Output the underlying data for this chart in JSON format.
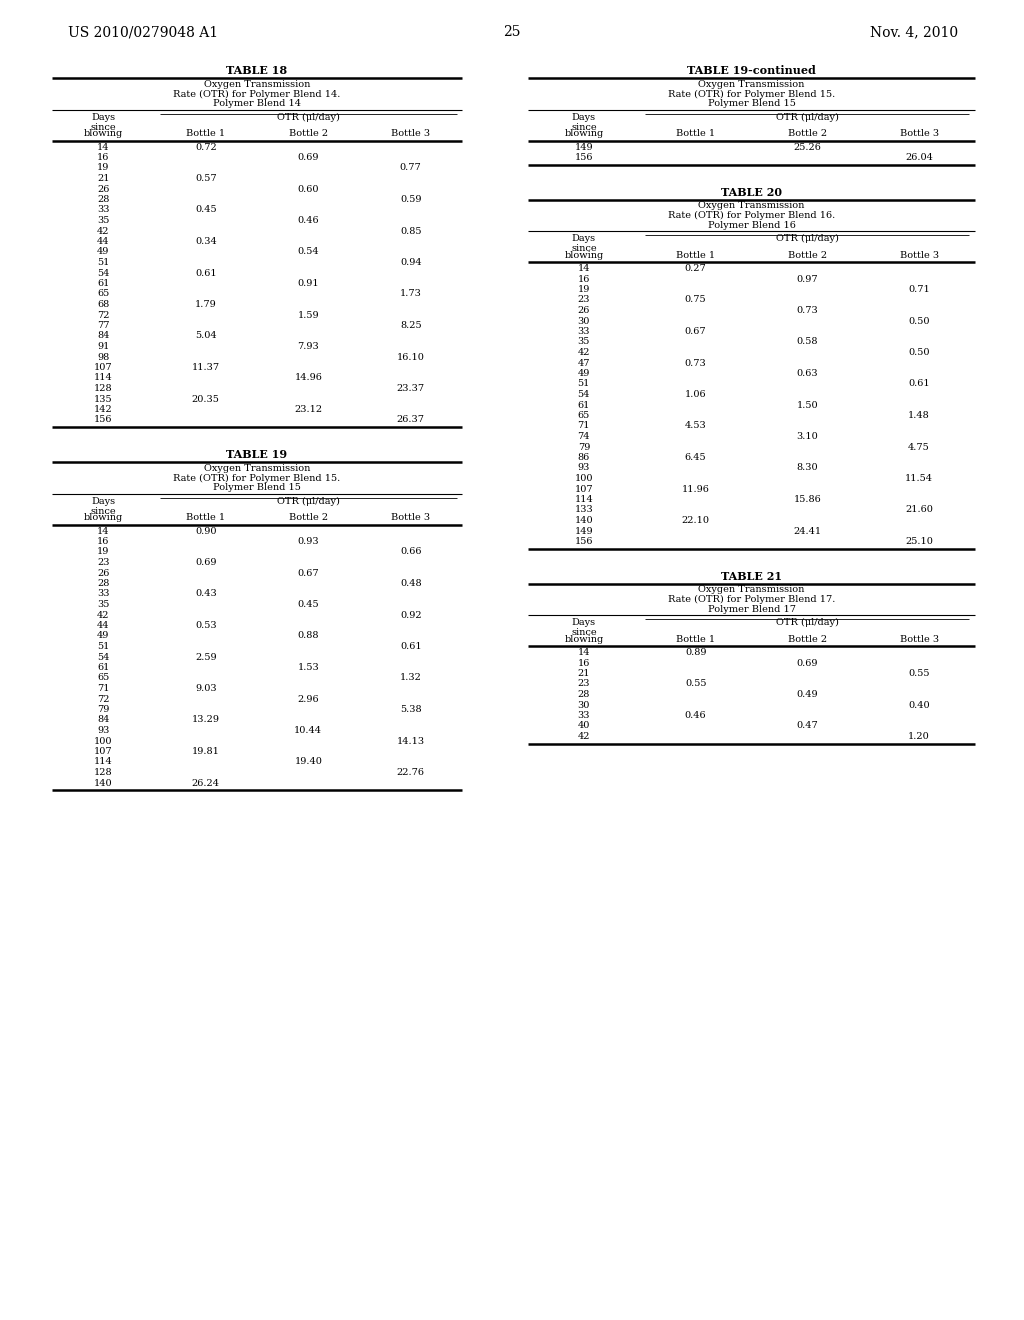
{
  "header_left": "US 2010/0279048 A1",
  "header_right": "Nov. 4, 2010",
  "page_number": "25",
  "background_color": "#ffffff",
  "text_color": "#000000",
  "tables": {
    "table18": {
      "title": "TABLE 18",
      "subtitle": "Oxygen Transmission\nRate (OTR) for Polymer Blend 14.\nPolymer Blend 14",
      "col_sub": [
        "blowing",
        "Bottle 1",
        "Bottle 2",
        "Bottle 3"
      ],
      "rows": [
        [
          "14",
          "0.72",
          "",
          ""
        ],
        [
          "16",
          "",
          "0.69",
          ""
        ],
        [
          "19",
          "",
          "",
          "0.77"
        ],
        [
          "21",
          "0.57",
          "",
          ""
        ],
        [
          "26",
          "",
          "0.60",
          ""
        ],
        [
          "28",
          "",
          "",
          "0.59"
        ],
        [
          "33",
          "0.45",
          "",
          ""
        ],
        [
          "35",
          "",
          "0.46",
          ""
        ],
        [
          "42",
          "",
          "",
          "0.85"
        ],
        [
          "44",
          "0.34",
          "",
          ""
        ],
        [
          "49",
          "",
          "0.54",
          ""
        ],
        [
          "51",
          "",
          "",
          "0.94"
        ],
        [
          "54",
          "0.61",
          "",
          ""
        ],
        [
          "61",
          "",
          "0.91",
          ""
        ],
        [
          "65",
          "",
          "",
          "1.73"
        ],
        [
          "68",
          "1.79",
          "",
          ""
        ],
        [
          "72",
          "",
          "1.59",
          ""
        ],
        [
          "77",
          "",
          "",
          "8.25"
        ],
        [
          "84",
          "5.04",
          "",
          ""
        ],
        [
          "91",
          "",
          "7.93",
          ""
        ],
        [
          "98",
          "",
          "",
          "16.10"
        ],
        [
          "107",
          "11.37",
          "",
          ""
        ],
        [
          "114",
          "",
          "14.96",
          ""
        ],
        [
          "128",
          "",
          "",
          "23.37"
        ],
        [
          "135",
          "20.35",
          "",
          ""
        ],
        [
          "142",
          "",
          "23.12",
          ""
        ],
        [
          "156",
          "",
          "",
          "26.37"
        ]
      ]
    },
    "table19": {
      "title": "TABLE 19",
      "subtitle": "Oxygen Transmission\nRate (OTR) for Polymer Blend 15.\nPolymer Blend 15",
      "col_sub": [
        "blowing",
        "Bottle 1",
        "Bottle 2",
        "Bottle 3"
      ],
      "rows": [
        [
          "14",
          "0.90",
          "",
          ""
        ],
        [
          "16",
          "",
          "0.93",
          ""
        ],
        [
          "19",
          "",
          "",
          "0.66"
        ],
        [
          "23",
          "0.69",
          "",
          ""
        ],
        [
          "26",
          "",
          "0.67",
          ""
        ],
        [
          "28",
          "",
          "",
          "0.48"
        ],
        [
          "33",
          "0.43",
          "",
          ""
        ],
        [
          "35",
          "",
          "0.45",
          ""
        ],
        [
          "42",
          "",
          "",
          "0.92"
        ],
        [
          "44",
          "0.53",
          "",
          ""
        ],
        [
          "49",
          "",
          "0.88",
          ""
        ],
        [
          "51",
          "",
          "",
          "0.61"
        ],
        [
          "54",
          "2.59",
          "",
          ""
        ],
        [
          "61",
          "",
          "1.53",
          ""
        ],
        [
          "65",
          "",
          "",
          "1.32"
        ],
        [
          "71",
          "9.03",
          "",
          ""
        ],
        [
          "72",
          "",
          "2.96",
          ""
        ],
        [
          "79",
          "",
          "",
          "5.38"
        ],
        [
          "84",
          "13.29",
          "",
          ""
        ],
        [
          "93",
          "",
          "10.44",
          ""
        ],
        [
          "100",
          "",
          "",
          "14.13"
        ],
        [
          "107",
          "19.81",
          "",
          ""
        ],
        [
          "114",
          "",
          "19.40",
          ""
        ],
        [
          "128",
          "",
          "",
          "22.76"
        ],
        [
          "140",
          "26.24",
          "",
          ""
        ]
      ]
    },
    "table19c": {
      "title": "TABLE 19-continued",
      "subtitle": "Oxygen Transmission\nRate (OTR) for Polymer Blend 15.\nPolymer Blend 15",
      "col_sub": [
        "blowing",
        "Bottle 1",
        "Bottle 2",
        "Bottle 3"
      ],
      "rows": [
        [
          "149",
          "",
          "25.26",
          ""
        ],
        [
          "156",
          "",
          "",
          "26.04"
        ]
      ]
    },
    "table20": {
      "title": "TABLE 20",
      "subtitle": "Oxygen Transmission\nRate (OTR) for Polymer Blend 16.\nPolymer Blend 16",
      "col_sub": [
        "blowing",
        "Bottle 1",
        "Bottle 2",
        "Bottle 3"
      ],
      "rows": [
        [
          "14",
          "0.27",
          "",
          ""
        ],
        [
          "16",
          "",
          "0.97",
          ""
        ],
        [
          "19",
          "",
          "",
          "0.71"
        ],
        [
          "23",
          "0.75",
          "",
          ""
        ],
        [
          "26",
          "",
          "0.73",
          ""
        ],
        [
          "30",
          "",
          "",
          "0.50"
        ],
        [
          "33",
          "0.67",
          "",
          ""
        ],
        [
          "35",
          "",
          "0.58",
          ""
        ],
        [
          "42",
          "",
          "",
          "0.50"
        ],
        [
          "47",
          "0.73",
          "",
          ""
        ],
        [
          "49",
          "",
          "0.63",
          ""
        ],
        [
          "51",
          "",
          "",
          "0.61"
        ],
        [
          "54",
          "1.06",
          "",
          ""
        ],
        [
          "61",
          "",
          "1.50",
          ""
        ],
        [
          "65",
          "",
          "",
          "1.48"
        ],
        [
          "71",
          "4.53",
          "",
          ""
        ],
        [
          "74",
          "",
          "3.10",
          ""
        ],
        [
          "79",
          "",
          "",
          "4.75"
        ],
        [
          "86",
          "6.45",
          "",
          ""
        ],
        [
          "93",
          "",
          "8.30",
          ""
        ],
        [
          "100",
          "",
          "",
          "11.54"
        ],
        [
          "107",
          "11.96",
          "",
          ""
        ],
        [
          "114",
          "",
          "15.86",
          ""
        ],
        [
          "133",
          "",
          "",
          "21.60"
        ],
        [
          "140",
          "22.10",
          "",
          ""
        ],
        [
          "149",
          "",
          "24.41",
          ""
        ],
        [
          "156",
          "",
          "",
          "25.10"
        ]
      ]
    },
    "table21": {
      "title": "TABLE 21",
      "subtitle": "Oxygen Transmission\nRate (OTR) for Polymer Blend 17.\nPolymer Blend 17",
      "col_sub": [
        "blowing",
        "Bottle 1",
        "Bottle 2",
        "Bottle 3"
      ],
      "rows": [
        [
          "14",
          "0.89",
          "",
          ""
        ],
        [
          "16",
          "",
          "0.69",
          ""
        ],
        [
          "21",
          "",
          "",
          "0.55"
        ],
        [
          "23",
          "0.55",
          "",
          ""
        ],
        [
          "28",
          "",
          "0.49",
          ""
        ],
        [
          "30",
          "",
          "",
          "0.40"
        ],
        [
          "33",
          "0.46",
          "",
          ""
        ],
        [
          "40",
          "",
          "0.47",
          ""
        ],
        [
          "42",
          "",
          "",
          "1.20"
        ]
      ]
    }
  }
}
